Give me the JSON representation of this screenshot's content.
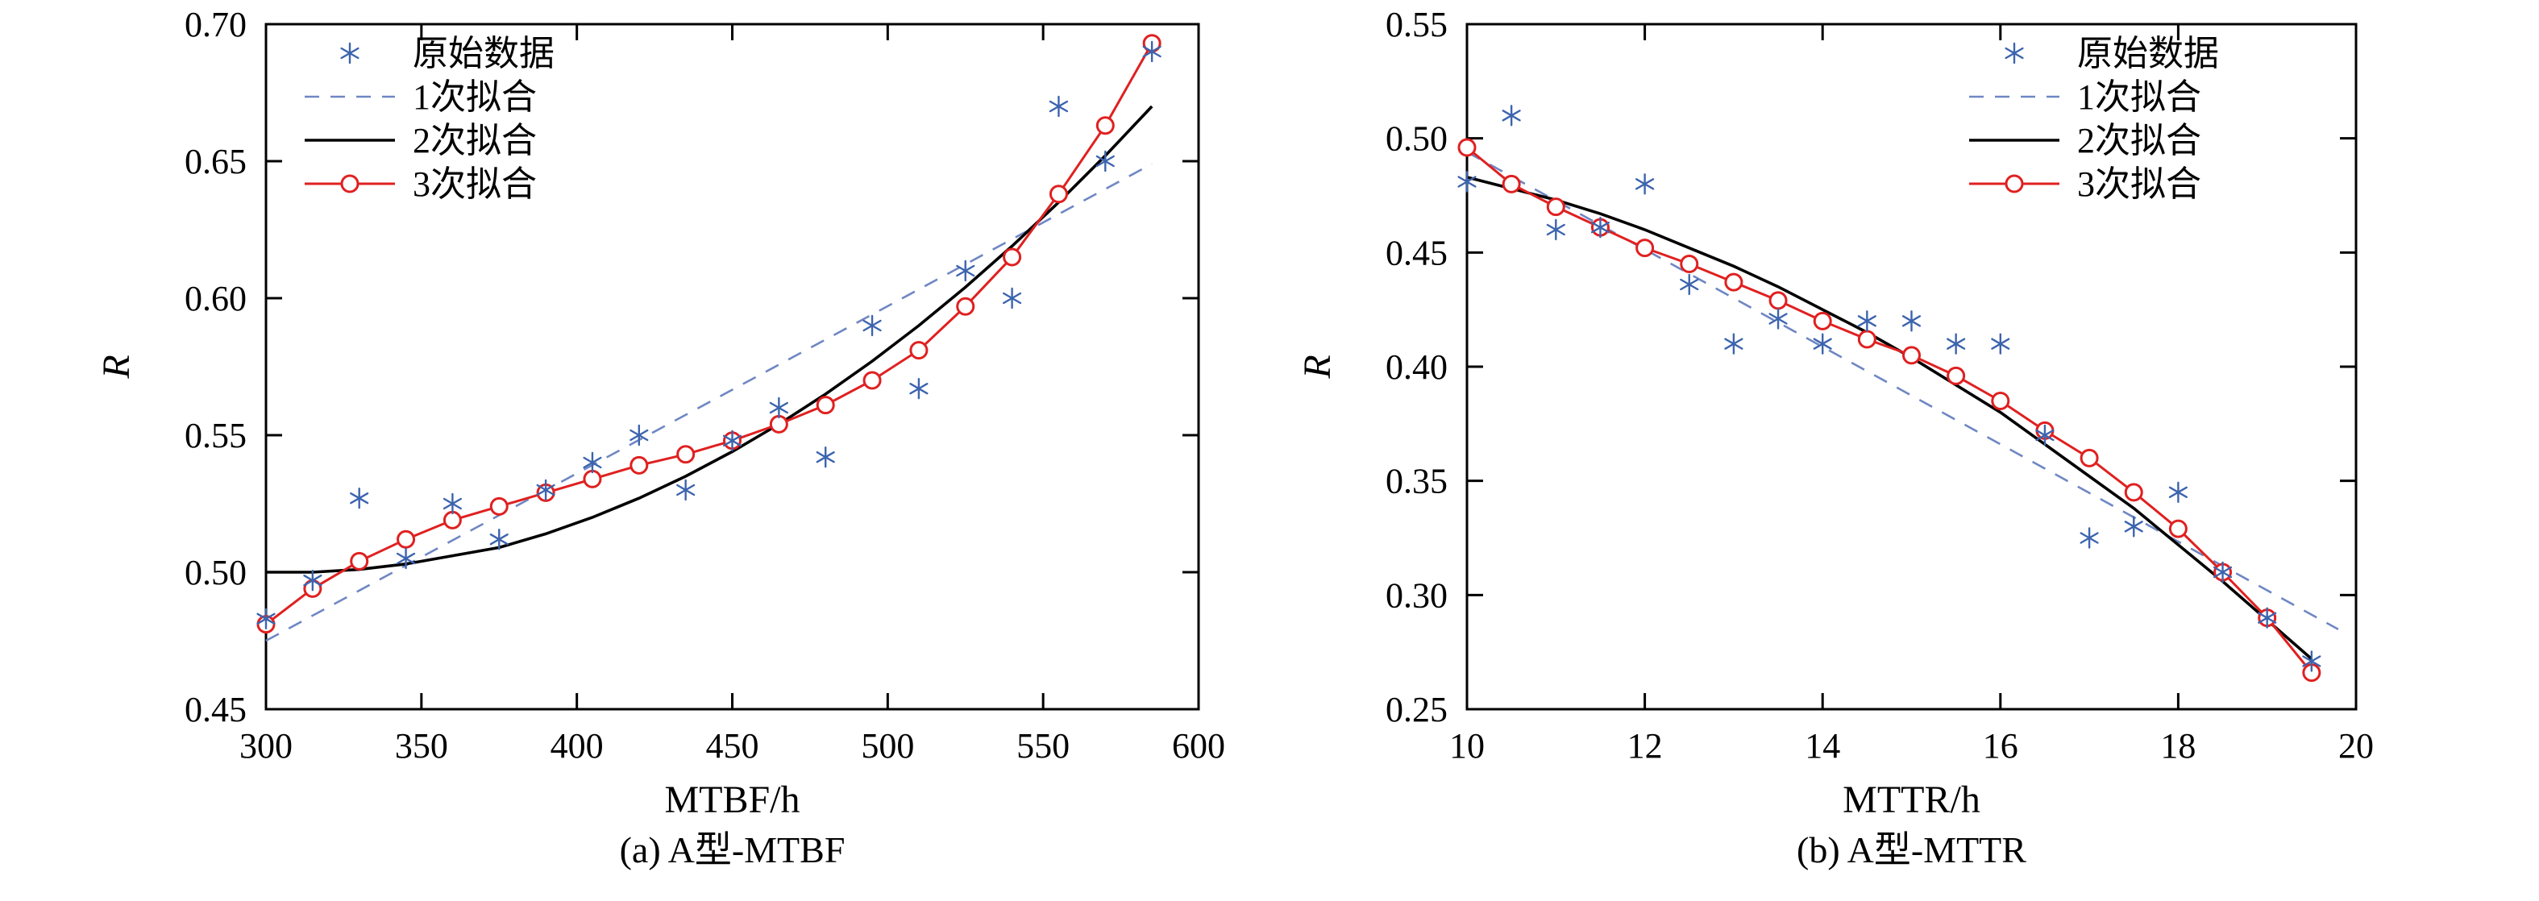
{
  "figure": {
    "background": "#ffffff"
  },
  "chart_data": [
    {
      "type": "scatter",
      "caption": "(a) A型-MTBF",
      "xlabel": "MTBF/h",
      "ylabel": "R",
      "xlim": [
        300,
        600
      ],
      "ylim": [
        0.45,
        0.7
      ],
      "xticks": [
        300,
        350,
        400,
        450,
        500,
        550,
        600
      ],
      "yticks": [
        0.45,
        0.5,
        0.55,
        0.6,
        0.65,
        0.7
      ],
      "xtick_decimals": 0,
      "ytick_decimals": 2,
      "grid": false,
      "legend_position": "top-left",
      "series": [
        {
          "key": "raw-data",
          "name": "原始数据",
          "type": "scatter-asterisk",
          "color": "#3c64ae",
          "x": [
            300,
            315,
            330,
            345,
            360,
            375,
            390,
            405,
            420,
            435,
            450,
            465,
            480,
            495,
            510,
            525,
            540,
            555,
            570,
            585
          ],
          "y": [
            0.483,
            0.497,
            0.527,
            0.505,
            0.525,
            0.512,
            0.53,
            0.54,
            0.55,
            0.53,
            0.548,
            0.56,
            0.542,
            0.59,
            0.567,
            0.61,
            0.6,
            0.67,
            0.65,
            0.69
          ]
        },
        {
          "key": "fit-1",
          "name": "1次拟合",
          "type": "line-dashed",
          "color": "#6f87c3",
          "x": [
            300,
            585
          ],
          "y": [
            0.475,
            0.649
          ]
        },
        {
          "key": "fit-2",
          "name": "2次拟合",
          "type": "line-solid",
          "color": "#000000",
          "x": [
            300,
            315,
            330,
            345,
            360,
            375,
            390,
            405,
            420,
            435,
            450,
            465,
            480,
            495,
            510,
            525,
            540,
            555,
            570,
            585
          ],
          "y": [
            0.5,
            0.5,
            0.501,
            0.503,
            0.506,
            0.509,
            0.514,
            0.52,
            0.527,
            0.535,
            0.544,
            0.554,
            0.565,
            0.577,
            0.59,
            0.604,
            0.619,
            0.635,
            0.652,
            0.67
          ]
        },
        {
          "key": "fit-3",
          "name": "3次拟合",
          "type": "line-circle",
          "color": "#e02020",
          "x": [
            300,
            315,
            330,
            345,
            360,
            375,
            390,
            405,
            420,
            435,
            450,
            465,
            480,
            495,
            510,
            525,
            540,
            555,
            570,
            585
          ],
          "y": [
            0.481,
            0.494,
            0.504,
            0.512,
            0.519,
            0.524,
            0.529,
            0.534,
            0.539,
            0.543,
            0.548,
            0.554,
            0.561,
            0.57,
            0.581,
            0.597,
            0.615,
            0.638,
            0.663,
            0.693
          ]
        }
      ]
    },
    {
      "type": "scatter",
      "caption": "(b) A型-MTTR",
      "xlabel": "MTTR/h",
      "ylabel": "R",
      "xlim": [
        10,
        20
      ],
      "ylim": [
        0.25,
        0.55
      ],
      "xticks": [
        10,
        12,
        14,
        16,
        18,
        20
      ],
      "yticks": [
        0.25,
        0.3,
        0.35,
        0.4,
        0.45,
        0.5,
        0.55
      ],
      "xtick_decimals": 0,
      "ytick_decimals": 2,
      "grid": false,
      "legend_position": "top-right",
      "series": [
        {
          "key": "raw-data",
          "name": "原始数据",
          "type": "scatter-asterisk",
          "color": "#3c64ae",
          "x": [
            10,
            10.5,
            11,
            11.5,
            12,
            12.5,
            13,
            13.5,
            14,
            14.5,
            15,
            15.5,
            16,
            16.5,
            17,
            17.5,
            18,
            18.5,
            19,
            19.5
          ],
          "y": [
            0.481,
            0.51,
            0.46,
            0.461,
            0.48,
            0.436,
            0.41,
            0.421,
            0.41,
            0.42,
            0.42,
            0.41,
            0.41,
            0.37,
            0.325,
            0.33,
            0.345,
            0.31,
            0.29,
            0.271
          ]
        },
        {
          "key": "fit-1",
          "name": "1次拟合",
          "type": "line-dashed",
          "color": "#6f87c3",
          "x": [
            10,
            19.8
          ],
          "y": [
            0.494,
            0.285
          ]
        },
        {
          "key": "fit-2",
          "name": "2次拟合",
          "type": "line-solid",
          "color": "#000000",
          "x": [
            10,
            10.5,
            11,
            11.5,
            12,
            12.5,
            13,
            13.5,
            14,
            14.5,
            15,
            15.5,
            16,
            16.5,
            17,
            17.5,
            18,
            18.5,
            19,
            19.5
          ],
          "y": [
            0.483,
            0.478,
            0.473,
            0.467,
            0.46,
            0.452,
            0.444,
            0.435,
            0.425,
            0.415,
            0.404,
            0.392,
            0.38,
            0.366,
            0.352,
            0.338,
            0.322,
            0.306,
            0.289,
            0.272
          ]
        },
        {
          "key": "fit-3",
          "name": "3次拟合",
          "type": "line-circle",
          "color": "#e02020",
          "x": [
            10,
            10.5,
            11,
            11.5,
            12,
            12.5,
            13,
            13.5,
            14,
            14.5,
            15,
            15.5,
            16,
            16.5,
            17,
            17.5,
            18,
            18.5,
            19,
            19.5
          ],
          "y": [
            0.496,
            0.48,
            0.47,
            0.461,
            0.452,
            0.445,
            0.437,
            0.429,
            0.42,
            0.412,
            0.405,
            0.396,
            0.385,
            0.372,
            0.36,
            0.345,
            0.329,
            0.31,
            0.29,
            0.266
          ]
        }
      ]
    }
  ]
}
